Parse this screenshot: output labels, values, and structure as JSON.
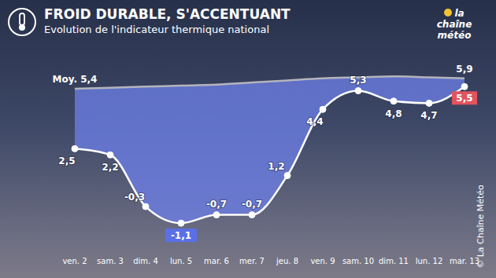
{
  "chart_data": {
    "type": "line",
    "title": "FROID DURABLE, S'ACCENTUANT",
    "subtitle": "Evolution de l'indicateur thermique national",
    "categories": [
      "ven. 2",
      "sam. 3",
      "dim. 4",
      "lun. 5",
      "mar. 6",
      "mer. 7",
      "jeu. 8",
      "ven. 9",
      "sam. 10",
      "dim. 11",
      "lun. 12",
      "mar. 13"
    ],
    "series": [
      {
        "color": "#ffffff",
        "marker": "circle",
        "values": [
          2.5,
          2.2,
          -0.3,
          -1.1,
          -0.7,
          -0.7,
          1.2,
          4.4,
          5.3,
          4.8,
          4.7,
          5.5
        ],
        "value_labels": [
          "2,5",
          "2,2",
          "-0,3",
          "-1,1",
          "-0,7",
          "-0,7",
          "1,2",
          "4,4",
          "5,3",
          "4,8",
          "4,7",
          "5,5"
        ]
      },
      {
        "color": "#b4b4bc",
        "values": [
          5.4,
          5.45,
          5.5,
          5.55,
          5.6,
          5.7,
          5.8,
          5.9,
          5.95,
          6.0,
          5.95,
          5.9
        ],
        "value_labels": [
          "Moy. 5,4",
          null,
          null,
          null,
          null,
          null,
          null,
          null,
          null,
          null,
          null,
          "5,9"
        ]
      }
    ],
    "ylim": [
      -2.5,
      6.5
    ],
    "tick_labels": "x",
    "data_labels": true,
    "logo": "la chaîne météo",
    "source": "© La Chaîne Météo"
  }
}
